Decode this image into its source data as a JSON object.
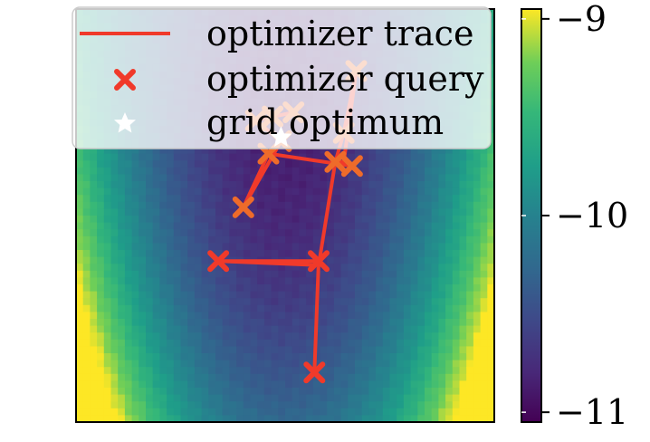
{
  "chart_data": [
    {
      "type": "heatmap",
      "title": "",
      "xlabel": "",
      "ylabel": "",
      "xlim": [
        0,
        1
      ],
      "ylim": [
        0,
        1
      ],
      "colormap": "viridis",
      "field_description_for_render": null,
      "grid": false,
      "series": [
        {
          "name": "optimizer trace",
          "kind": "line",
          "color": "#f03a2a",
          "points": [
            [
              0.57,
              0.12
            ],
            [
              0.58,
              0.39
            ],
            [
              0.34,
              0.39
            ],
            [
              0.58,
              0.38
            ],
            [
              0.62,
              0.63
            ],
            [
              0.64,
              0.7
            ],
            [
              0.67,
              0.85
            ],
            [
              0.64,
              0.63
            ],
            [
              0.62,
              0.63
            ],
            [
              0.66,
              0.62
            ],
            [
              0.46,
              0.65
            ],
            [
              0.4,
              0.52
            ],
            [
              0.49,
              0.68
            ],
            [
              0.43,
              0.73
            ],
            [
              0.52,
              0.75
            ]
          ]
        },
        {
          "name": "optimizer query",
          "kind": "scatter",
          "marker": "x",
          "color": "#f03a2a",
          "points": [
            [
              0.57,
              0.12
            ],
            [
              0.58,
              0.39
            ],
            [
              0.34,
              0.39
            ],
            [
              0.62,
              0.63
            ],
            [
              0.64,
              0.7
            ],
            [
              0.67,
              0.85
            ],
            [
              0.66,
              0.62
            ],
            [
              0.46,
              0.65
            ],
            [
              0.4,
              0.52
            ],
            [
              0.49,
              0.68
            ],
            [
              0.43,
              0.73
            ],
            [
              0.52,
              0.75
            ],
            [
              0.47,
              0.74
            ]
          ]
        },
        {
          "name": "grid optimum",
          "kind": "scatter",
          "marker": "star",
          "color": "#ffffff",
          "points": [
            [
              0.49,
              0.69
            ]
          ]
        }
      ],
      "legend": {
        "placement": "top-left"
      }
    },
    {
      "type": "colorbar",
      "range": [
        -11.05,
        -8.95
      ],
      "ticks": [
        -11,
        -10,
        -9
      ],
      "tick_labels": [
        "−11",
        "−10",
        "−9"
      ],
      "colormap": "viridis"
    }
  ]
}
